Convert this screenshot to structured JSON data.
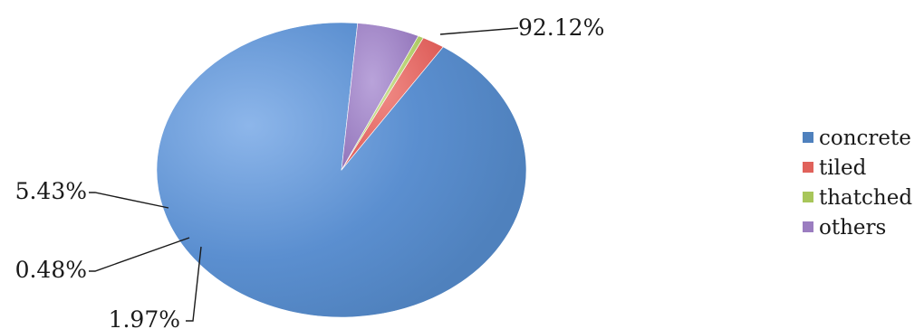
{
  "chart_data": {
    "type": "pie",
    "categories": [
      "concrete",
      "tiled",
      "thatched",
      "others"
    ],
    "values": [
      92.12,
      1.97,
      0.48,
      5.43
    ],
    "data_labels": [
      "92.12%",
      "1.97%",
      "0.48%",
      "5.43%"
    ],
    "colors": [
      "#4F81BD",
      "#E0625B",
      "#A8C65A",
      "#9B7DC0"
    ],
    "legend_position": "right",
    "style": "3d-tilted",
    "title": ""
  }
}
